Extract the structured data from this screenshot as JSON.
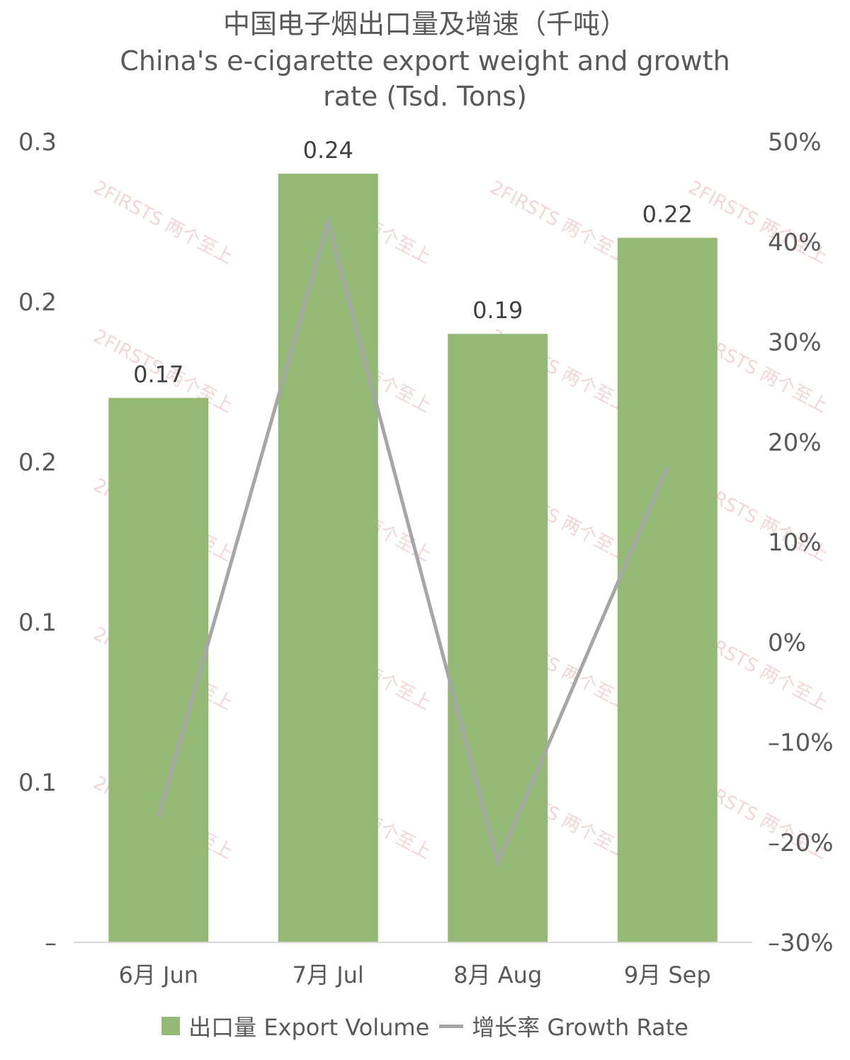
{
  "chart_data": {
    "type": "bar+line",
    "title_zh": "中国电子烟出口量及增速（千吨）",
    "title_en_line1": "China's e-cigarette export weight and growth",
    "title_en_line2": "rate (Tsd. Tons)",
    "categories": [
      "6月 Jun",
      "7月 Jul",
      "8月 Aug",
      "9月 Sep"
    ],
    "left_axis": {
      "tick_labels": [
        "–",
        "0.1",
        "0.1",
        "0.2",
        "0.2",
        "0.3"
      ],
      "ylim": [
        0,
        0.25
      ]
    },
    "right_axis": {
      "tick_labels": [
        "–30%",
        "–20%",
        "–10%",
        "0%",
        "10%",
        "20%",
        "30%",
        "40%",
        "50%"
      ],
      "ylim": [
        -30,
        50
      ]
    },
    "series": [
      {
        "name": "出口量 Export Volume",
        "type": "bar",
        "axis": "left",
        "color": "#93b975",
        "values": [
          0.17,
          0.24,
          0.19,
          0.22
        ],
        "labels": [
          "0.17",
          "0.24",
          "0.19",
          "0.22"
        ]
      },
      {
        "name": "增长率 Growth Rate",
        "type": "line",
        "axis": "right",
        "color": "#a6a6a6",
        "values": [
          -17.5,
          42,
          -22,
          17.5
        ]
      }
    ],
    "legend_position": "bottom",
    "grid": false
  },
  "watermark": "2FIRSTS 两个至上"
}
